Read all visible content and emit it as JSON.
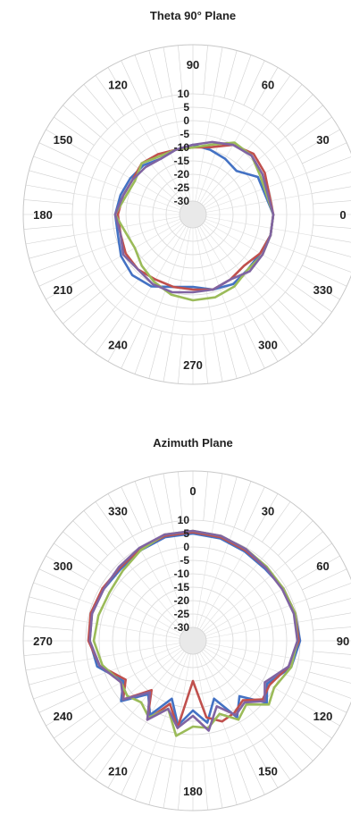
{
  "chart_data": [
    {
      "type": "polar-line",
      "title": "Theta 90° Plane",
      "zero_angle_position": "right",
      "angle_direction": "counterclockwise",
      "angle_labels": [
        "0",
        "30",
        "60",
        "90",
        "120",
        "150",
        "180",
        "210",
        "240",
        "270",
        "300",
        "330"
      ],
      "radial_ticks": [
        10,
        5,
        0,
        -5,
        -10,
        -15,
        -20,
        -25,
        -30
      ],
      "rlim": [
        -35,
        10
      ],
      "grid": true,
      "legend": "none",
      "series_colors": [
        "#4472c4",
        "#c0504d",
        "#9bbb59",
        "#8064a2"
      ],
      "series": [
        {
          "angles": [
            0,
            30,
            45,
            60,
            75,
            90,
            105,
            120,
            135,
            150,
            165,
            180,
            195,
            210,
            225,
            240,
            255,
            270,
            285,
            300,
            315,
            330,
            345
          ],
          "values": [
            -5,
            -7,
            -12,
            -11,
            -10,
            -9,
            -10,
            -11,
            -9,
            -8,
            -7,
            -6,
            -6,
            -4,
            -3,
            -4,
            -7,
            -8,
            -6,
            -5,
            -6,
            -6,
            -5
          ]
        },
        {
          "angles": [
            0,
            30,
            45,
            60,
            75,
            90,
            105,
            120,
            135,
            150,
            165,
            180,
            195,
            210,
            225,
            240,
            255,
            270,
            285,
            300,
            315,
            330,
            345
          ],
          "values": [
            -5,
            -4,
            -3,
            -5,
            -9,
            -10,
            -10,
            -9,
            -8,
            -9,
            -8,
            -7,
            -7,
            -6,
            -6,
            -7,
            -7,
            -7,
            -6,
            -7,
            -8,
            -6,
            -5
          ]
        },
        {
          "angles": [
            0,
            30,
            45,
            60,
            75,
            90,
            105,
            120,
            135,
            150,
            165,
            180,
            195,
            210,
            225,
            240,
            255,
            270,
            285,
            300,
            315,
            330,
            345
          ],
          "values": [
            -5,
            -6,
            -4,
            -4,
            -8,
            -10,
            -10,
            -10,
            -8,
            -10,
            -9,
            -6,
            -9,
            -10,
            -8,
            -6,
            -4,
            -3,
            -3,
            -4,
            -6,
            -5,
            -5
          ]
        },
        {
          "angles": [
            0,
            30,
            45,
            60,
            75,
            90,
            105,
            120,
            135,
            150,
            165,
            180,
            195,
            210,
            225,
            240,
            255,
            270,
            285,
            300,
            315,
            330,
            345
          ],
          "values": [
            -5,
            -5,
            -4,
            -5,
            -7,
            -9,
            -10,
            -11,
            -10,
            -9,
            -8,
            -6,
            -7,
            -5,
            -6,
            -5,
            -5,
            -6,
            -6,
            -7,
            -5,
            -5,
            -5
          ]
        }
      ]
    },
    {
      "type": "polar-line",
      "title": "Azimuth Plane",
      "zero_angle_position": "top",
      "angle_direction": "clockwise",
      "angle_labels": [
        "0",
        "30",
        "60",
        "90",
        "120",
        "150",
        "180",
        "210",
        "240",
        "270",
        "300",
        "330"
      ],
      "radial_ticks": [
        10,
        5,
        0,
        -5,
        -10,
        -15,
        -20,
        -25,
        -30
      ],
      "rlim": [
        -35,
        10
      ],
      "grid": true,
      "legend": "none",
      "series_colors": [
        "#4472c4",
        "#c0504d",
        "#9bbb59",
        "#8064a2"
      ],
      "series": [
        {
          "angles": [
            0,
            15,
            30,
            45,
            60,
            75,
            90,
            105,
            120,
            130,
            140,
            150,
            160,
            170,
            180,
            190,
            200,
            210,
            220,
            230,
            240,
            255,
            270,
            285,
            300,
            315,
            330,
            345
          ],
          "values": [
            5,
            4.5,
            3.5,
            3,
            4,
            4.5,
            5,
            3,
            -3,
            1,
            -8,
            -2,
            -12,
            -4,
            -9,
            -3,
            -12,
            -3,
            -9,
            0,
            -5,
            2,
            3.5,
            4,
            3.5,
            3,
            4,
            5
          ]
        },
        {
          "angles": [
            0,
            15,
            30,
            45,
            60,
            75,
            90,
            105,
            120,
            130,
            140,
            150,
            160,
            170,
            180,
            190,
            200,
            210,
            220,
            230,
            240,
            255,
            270,
            285,
            300,
            315,
            330,
            345
          ],
          "values": [
            5.5,
            5,
            4,
            3.5,
            4,
            4.5,
            4.5,
            2,
            -2,
            -1,
            -6,
            -4,
            -3,
            -6,
            -20,
            -2,
            -10,
            -1,
            -11,
            -1,
            -6,
            1,
            4,
            4.5,
            4,
            3.5,
            4.5,
            5.5
          ]
        },
        {
          "angles": [
            0,
            15,
            30,
            45,
            60,
            75,
            90,
            105,
            120,
            130,
            140,
            150,
            160,
            170,
            180,
            190,
            200,
            210,
            220,
            230,
            240,
            255,
            270,
            285,
            300,
            315,
            330,
            345
          ],
          "values": [
            6,
            5.5,
            4.5,
            4,
            4,
            4.5,
            4,
            3,
            0,
            2,
            -4,
            -1,
            -6,
            -2,
            -3,
            1,
            -8,
            -2,
            -5,
            -3,
            -4,
            0,
            2,
            1.5,
            1,
            2,
            4,
            6
          ]
        },
        {
          "angles": [
            0,
            15,
            30,
            45,
            60,
            75,
            90,
            105,
            120,
            130,
            140,
            150,
            160,
            170,
            180,
            190,
            200,
            210,
            220,
            230,
            240,
            255,
            270,
            285,
            300,
            315,
            330,
            345
          ],
          "values": [
            6,
            5.5,
            4.5,
            3.5,
            3.5,
            4,
            4,
            2,
            -4,
            0,
            -5,
            -3,
            -9,
            -1,
            -7,
            -2,
            -8,
            -1,
            -10,
            -1,
            -4,
            1,
            3.5,
            4,
            3.5,
            4,
            5,
            6
          ]
        }
      ]
    }
  ]
}
